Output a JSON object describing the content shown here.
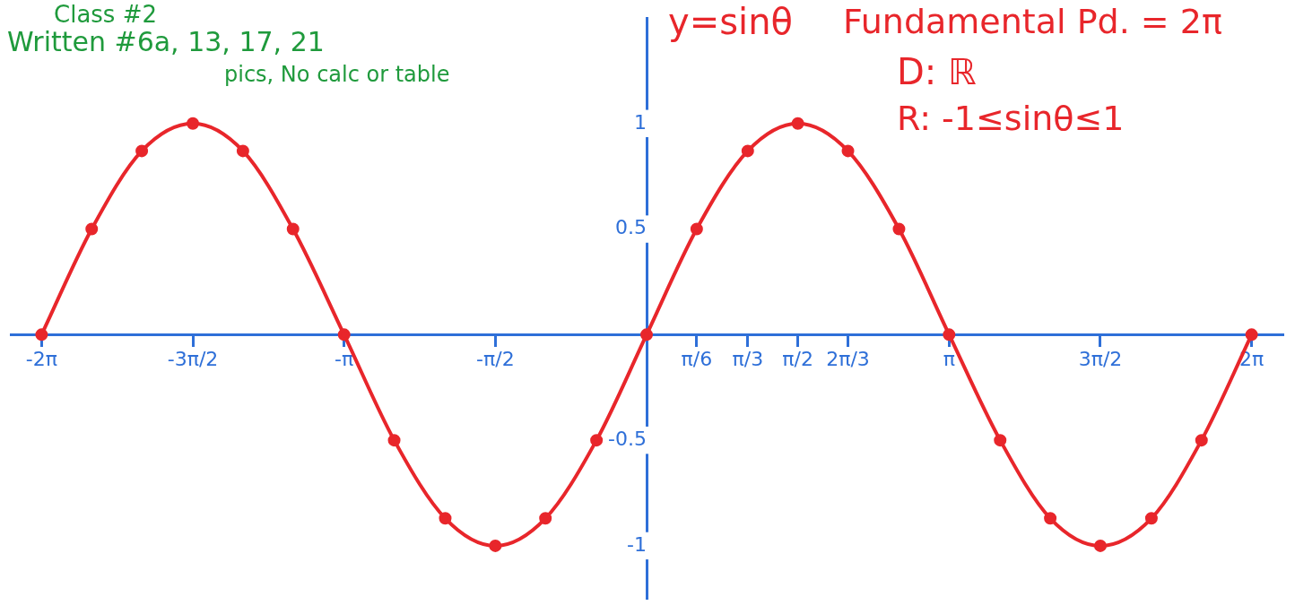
{
  "chart_data": {
    "type": "line",
    "title": "y=sinθ",
    "annotations": [
      "Class #2",
      "Written #6a, 13, 17, 21",
      "pics, No calc or table",
      "Fundamental Pd. = 2π",
      "D: ℝ",
      "R: -1≤sinθ≤1"
    ],
    "x": [
      -6.28,
      -5.76,
      -5.24,
      -4.71,
      -4.19,
      -3.67,
      -3.14,
      -2.62,
      -2.09,
      -1.57,
      -1.05,
      -0.52,
      0,
      0.52,
      1.05,
      1.57,
      2.09,
      2.62,
      3.14,
      3.67,
      4.19,
      4.71,
      5.24,
      5.76,
      6.28
    ],
    "values": [
      0,
      0.5,
      0.87,
      1,
      0.87,
      0.5,
      0,
      -0.5,
      -0.87,
      -1,
      -0.87,
      -0.5,
      0,
      0.5,
      0.87,
      1,
      0.87,
      0.5,
      0,
      -0.5,
      -0.87,
      -1,
      -0.87,
      -0.5,
      0
    ],
    "color": "#e8262b",
    "marker": "circle",
    "xlim": [
      -6.6,
      6.6
    ],
    "ylim": [
      -1.25,
      1.5
    ],
    "xticks": [
      {
        "value": -6.28,
        "label": "-2π"
      },
      {
        "value": -4.71,
        "label": "-3π/2"
      },
      {
        "value": -3.14,
        "label": "-π"
      },
      {
        "value": -1.57,
        "label": "-π/2"
      },
      {
        "value": 0.52,
        "label": "π/6"
      },
      {
        "value": 1.05,
        "label": "π/3"
      },
      {
        "value": 1.57,
        "label": "π/2"
      },
      {
        "value": 2.09,
        "label": "2π/3"
      },
      {
        "value": 3.14,
        "label": "π"
      },
      {
        "value": 4.71,
        "label": "3π/2"
      },
      {
        "value": 6.28,
        "label": "2π"
      }
    ],
    "yticks": [
      -1,
      -0.5,
      0.5,
      1
    ],
    "grid": false
  }
}
